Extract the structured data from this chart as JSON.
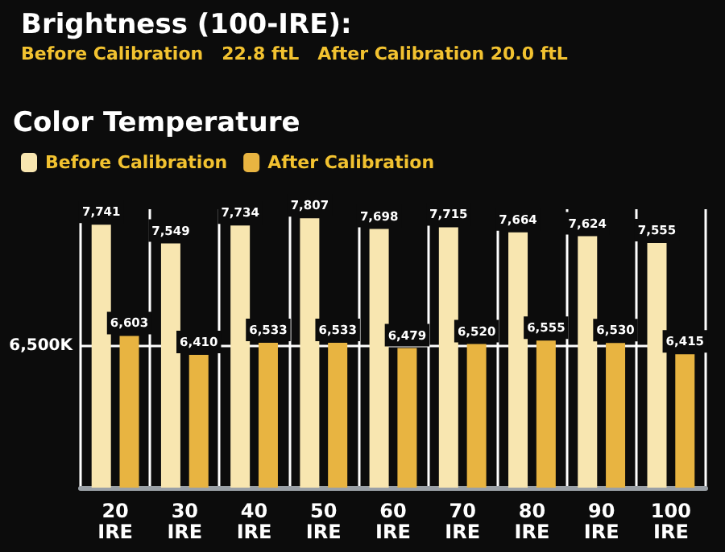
{
  "chart_data": {
    "type": "bar",
    "title": "Brightness (100-IRE):",
    "subtitle": "Before Calibration   22.8 ftL   After Calibration 20.0 ftL",
    "legend_title": "Color Temperature",
    "categories": [
      "20 IRE",
      "30 IRE",
      "40 IRE",
      "50 IRE",
      "60 IRE",
      "70 IRE",
      "80 IRE",
      "90 IRE",
      "100 IRE"
    ],
    "series": [
      {
        "name": "Before Calibration",
        "color": "#f8e6b0",
        "values": [
          7741,
          7549,
          7734,
          7807,
          7698,
          7715,
          7664,
          7624,
          7555
        ],
        "value_labels": [
          "7,741",
          "7,549",
          "7,734",
          "7,807",
          "7,698",
          "7,715",
          "7,664",
          "7,624",
          "7,555"
        ]
      },
      {
        "name": "After Calibration",
        "color": "#e8b441",
        "values": [
          6603,
          6410,
          6533,
          6533,
          6479,
          6520,
          6555,
          6530,
          6415
        ],
        "value_labels": [
          "6,603",
          "6,410",
          "6,533",
          "6,533",
          "6,479",
          "6,520",
          "6,555",
          "6,530",
          "6,415"
        ]
      }
    ],
    "ylim": [
      5050,
      7900
    ],
    "tick_labels": "x",
    "grid": "x",
    "legend": "top left",
    "ref_lines": [
      {
        "axis": "y",
        "value": 6500,
        "label": "6,500K",
        "color": "#ffffff"
      }
    ]
  }
}
